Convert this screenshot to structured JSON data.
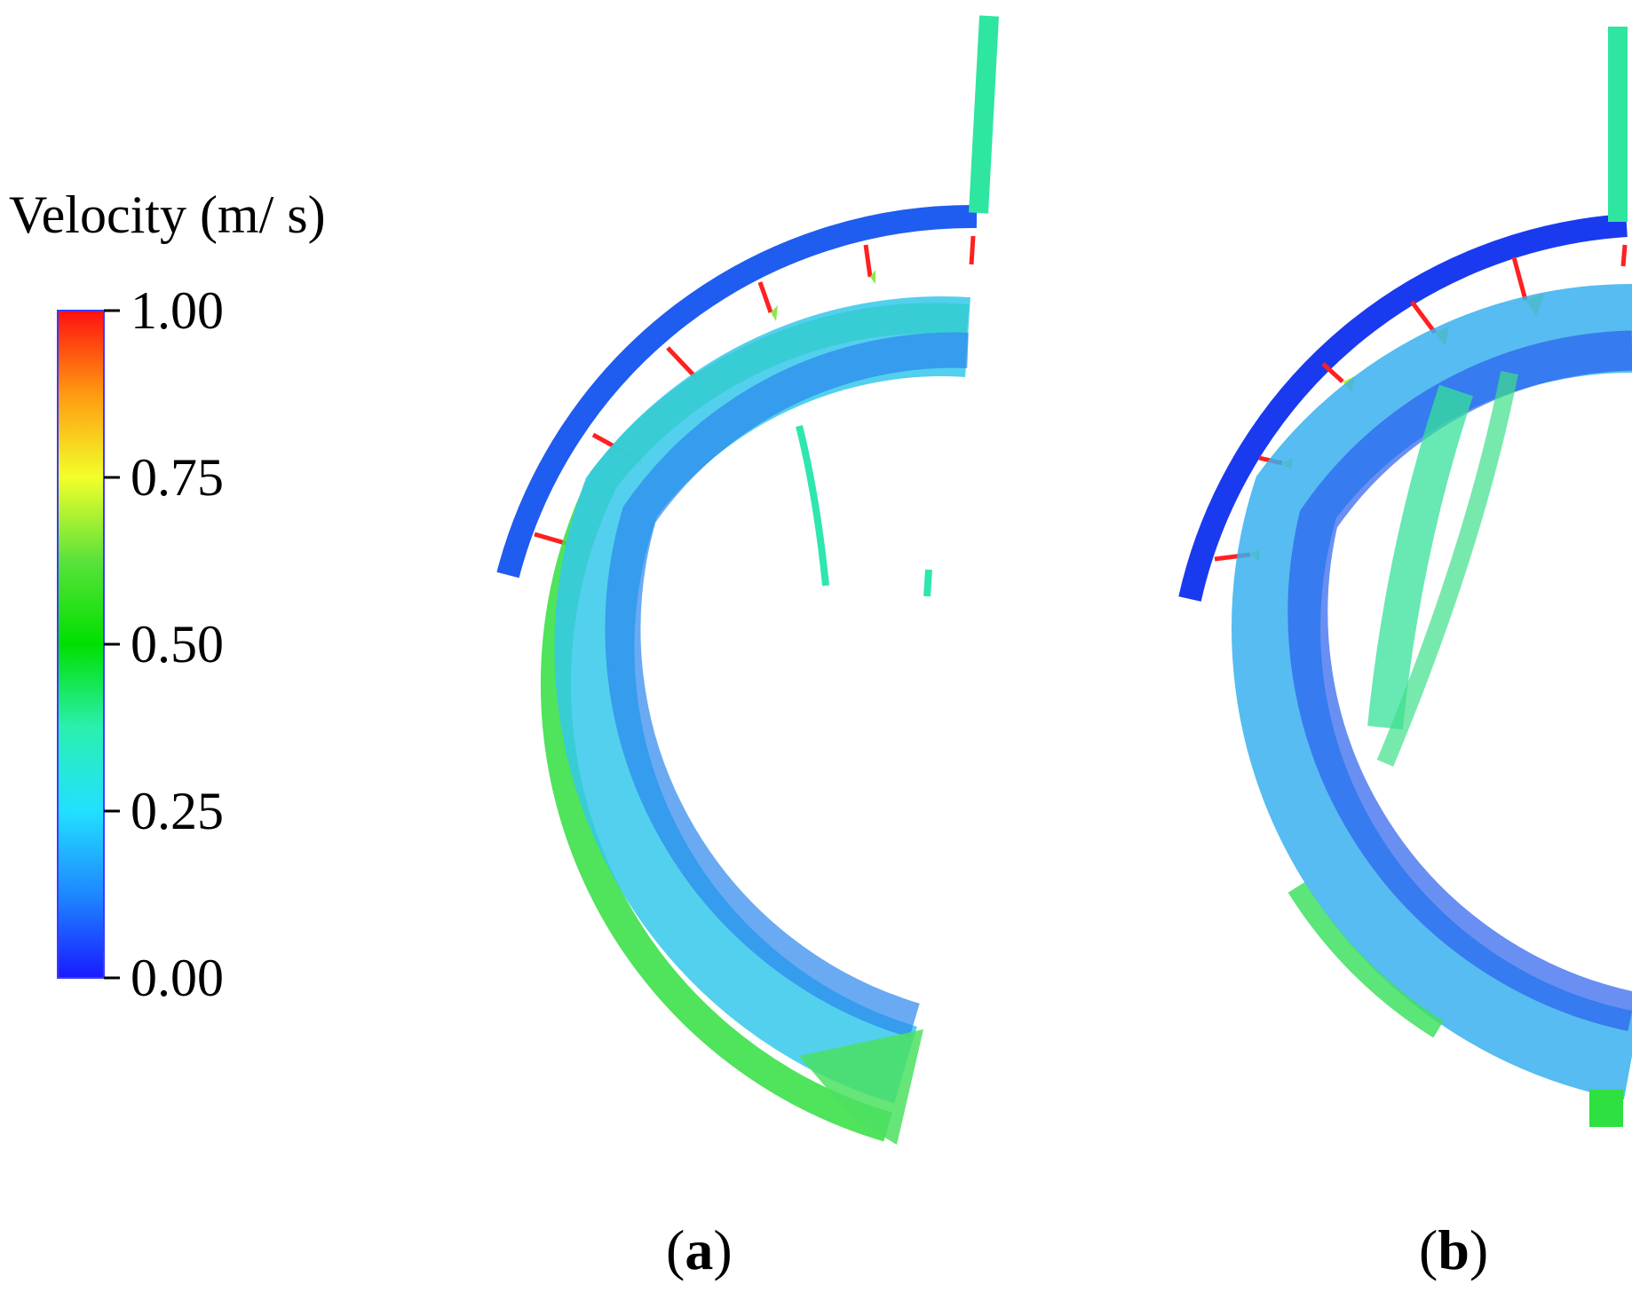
{
  "legend": {
    "title": "Velocity (m/ s)",
    "ticks": [
      {
        "value": 1.0,
        "label": "1.00"
      },
      {
        "value": 0.75,
        "label": "0.75"
      },
      {
        "value": 0.5,
        "label": "0.50"
      },
      {
        "value": 0.25,
        "label": "0.25"
      },
      {
        "value": 0.0,
        "label": "0.00"
      }
    ],
    "min": 0.0,
    "max": 1.0,
    "colors": [
      "#1a1aff",
      "#1e88ff",
      "#22e0ff",
      "#2af0b0",
      "#00e000",
      "#5ae23a",
      "#f2ff2a",
      "#ff9a10",
      "#ff1010"
    ]
  },
  "panels": [
    {
      "open": "(",
      "letter": "a",
      "close": ")"
    },
    {
      "open": "(",
      "letter": "b",
      "close": ")"
    }
  ]
}
